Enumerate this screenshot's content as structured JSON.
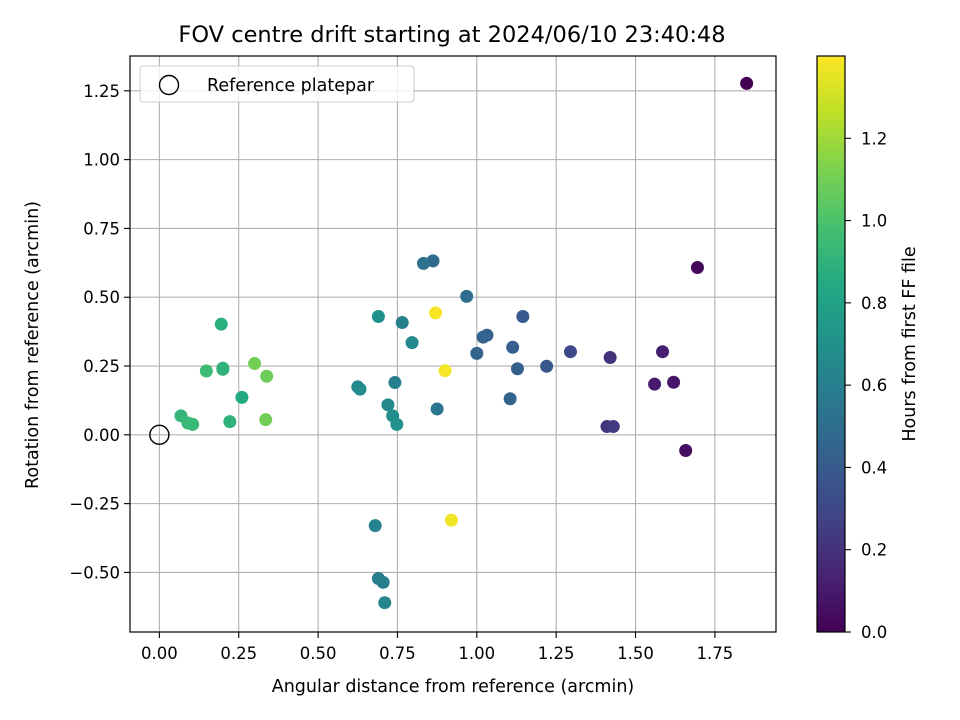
{
  "chart_data": {
    "type": "scatter",
    "title": "FOV centre drift starting at 2024/06/10 23:40:48",
    "xlabel": "Angular distance from reference (arcmin)",
    "ylabel": "Rotation from reference (arcmin)",
    "xlim": [
      -0.0925,
      1.9425
    ],
    "ylim": [
      -0.7165,
      1.3765
    ],
    "xticks": [
      "0.00",
      "0.25",
      "0.50",
      "0.75",
      "1.00",
      "1.25",
      "1.50",
      "1.75"
    ],
    "yticks": [
      "−0.50",
      "−0.25",
      "0.00",
      "0.25",
      "0.50",
      "0.75",
      "1.00",
      "1.25"
    ],
    "grid": true,
    "legend": {
      "position": "top-left",
      "entries": [
        "Reference platepar"
      ]
    },
    "reference_point": {
      "x": 0.0,
      "y": 0.0,
      "label": "Reference platepar"
    },
    "colorbar": {
      "label": "Hours from first FF file",
      "colormap": "viridis",
      "range": [
        0.0,
        1.4
      ],
      "ticks": [
        "0.0",
        "0.2",
        "0.4",
        "0.6",
        "0.8",
        "1.0",
        "1.2"
      ]
    },
    "points": [
      {
        "x": 1.85,
        "y": 1.277,
        "t": 0.0
      },
      {
        "x": 1.695,
        "y": 0.608,
        "t": 0.03
      },
      {
        "x": 1.658,
        "y": -0.057,
        "t": 0.05
      },
      {
        "x": 1.62,
        "y": 0.191,
        "t": 0.08
      },
      {
        "x": 1.56,
        "y": 0.184,
        "t": 0.1
      },
      {
        "x": 1.585,
        "y": 0.302,
        "t": 0.12
      },
      {
        "x": 1.42,
        "y": 0.281,
        "t": 0.2
      },
      {
        "x": 1.41,
        "y": 0.03,
        "t": 0.22
      },
      {
        "x": 1.43,
        "y": 0.03,
        "t": 0.24
      },
      {
        "x": 1.295,
        "y": 0.302,
        "t": 0.3
      },
      {
        "x": 1.22,
        "y": 0.249,
        "t": 0.38
      },
      {
        "x": 1.145,
        "y": 0.43,
        "t": 0.4
      },
      {
        "x": 1.128,
        "y": 0.24,
        "t": 0.42
      },
      {
        "x": 1.113,
        "y": 0.318,
        "t": 0.42
      },
      {
        "x": 1.105,
        "y": 0.131,
        "t": 0.45
      },
      {
        "x": 1.032,
        "y": 0.362,
        "t": 0.42
      },
      {
        "x": 1.02,
        "y": 0.355,
        "t": 0.45
      },
      {
        "x": 1.0,
        "y": 0.296,
        "t": 0.45
      },
      {
        "x": 0.968,
        "y": 0.503,
        "t": 0.5
      },
      {
        "x": 0.862,
        "y": 0.632,
        "t": 0.48
      },
      {
        "x": 0.832,
        "y": 0.623,
        "t": 0.52
      },
      {
        "x": 0.875,
        "y": 0.094,
        "t": 0.55
      },
      {
        "x": 0.796,
        "y": 0.335,
        "t": 0.65
      },
      {
        "x": 0.765,
        "y": 0.408,
        "t": 0.6
      },
      {
        "x": 0.69,
        "y": 0.43,
        "t": 0.7
      },
      {
        "x": 0.742,
        "y": 0.19,
        "t": 0.6
      },
      {
        "x": 0.72,
        "y": 0.109,
        "t": 0.65
      },
      {
        "x": 0.735,
        "y": 0.069,
        "t": 0.67
      },
      {
        "x": 0.748,
        "y": 0.038,
        "t": 0.7
      },
      {
        "x": 0.625,
        "y": 0.174,
        "t": 0.65
      },
      {
        "x": 0.632,
        "y": 0.166,
        "t": 0.68
      },
      {
        "x": 0.68,
        "y": -0.33,
        "t": 0.62
      },
      {
        "x": 0.69,
        "y": -0.522,
        "t": 0.58
      },
      {
        "x": 0.705,
        "y": -0.536,
        "t": 0.6
      },
      {
        "x": 0.71,
        "y": -0.61,
        "t": 0.63
      },
      {
        "x": 0.87,
        "y": 0.443,
        "t": 1.39
      },
      {
        "x": 0.9,
        "y": 0.233,
        "t": 1.38
      },
      {
        "x": 0.92,
        "y": -0.31,
        "t": 1.37
      },
      {
        "x": 0.195,
        "y": 0.402,
        "t": 0.88
      },
      {
        "x": 0.2,
        "y": 0.242,
        "t": 0.87
      },
      {
        "x": 0.2,
        "y": 0.238,
        "t": 0.9
      },
      {
        "x": 0.148,
        "y": 0.232,
        "t": 0.95
      },
      {
        "x": 0.068,
        "y": 0.069,
        "t": 0.92
      },
      {
        "x": 0.09,
        "y": 0.043,
        "t": 0.93
      },
      {
        "x": 0.105,
        "y": 0.038,
        "t": 0.94
      },
      {
        "x": 0.222,
        "y": 0.048,
        "t": 0.9
      },
      {
        "x": 0.26,
        "y": 0.136,
        "t": 0.85
      },
      {
        "x": 0.3,
        "y": 0.259,
        "t": 1.1
      },
      {
        "x": 0.338,
        "y": 0.213,
        "t": 1.08
      },
      {
        "x": 0.335,
        "y": 0.055,
        "t": 1.1
      }
    ]
  }
}
